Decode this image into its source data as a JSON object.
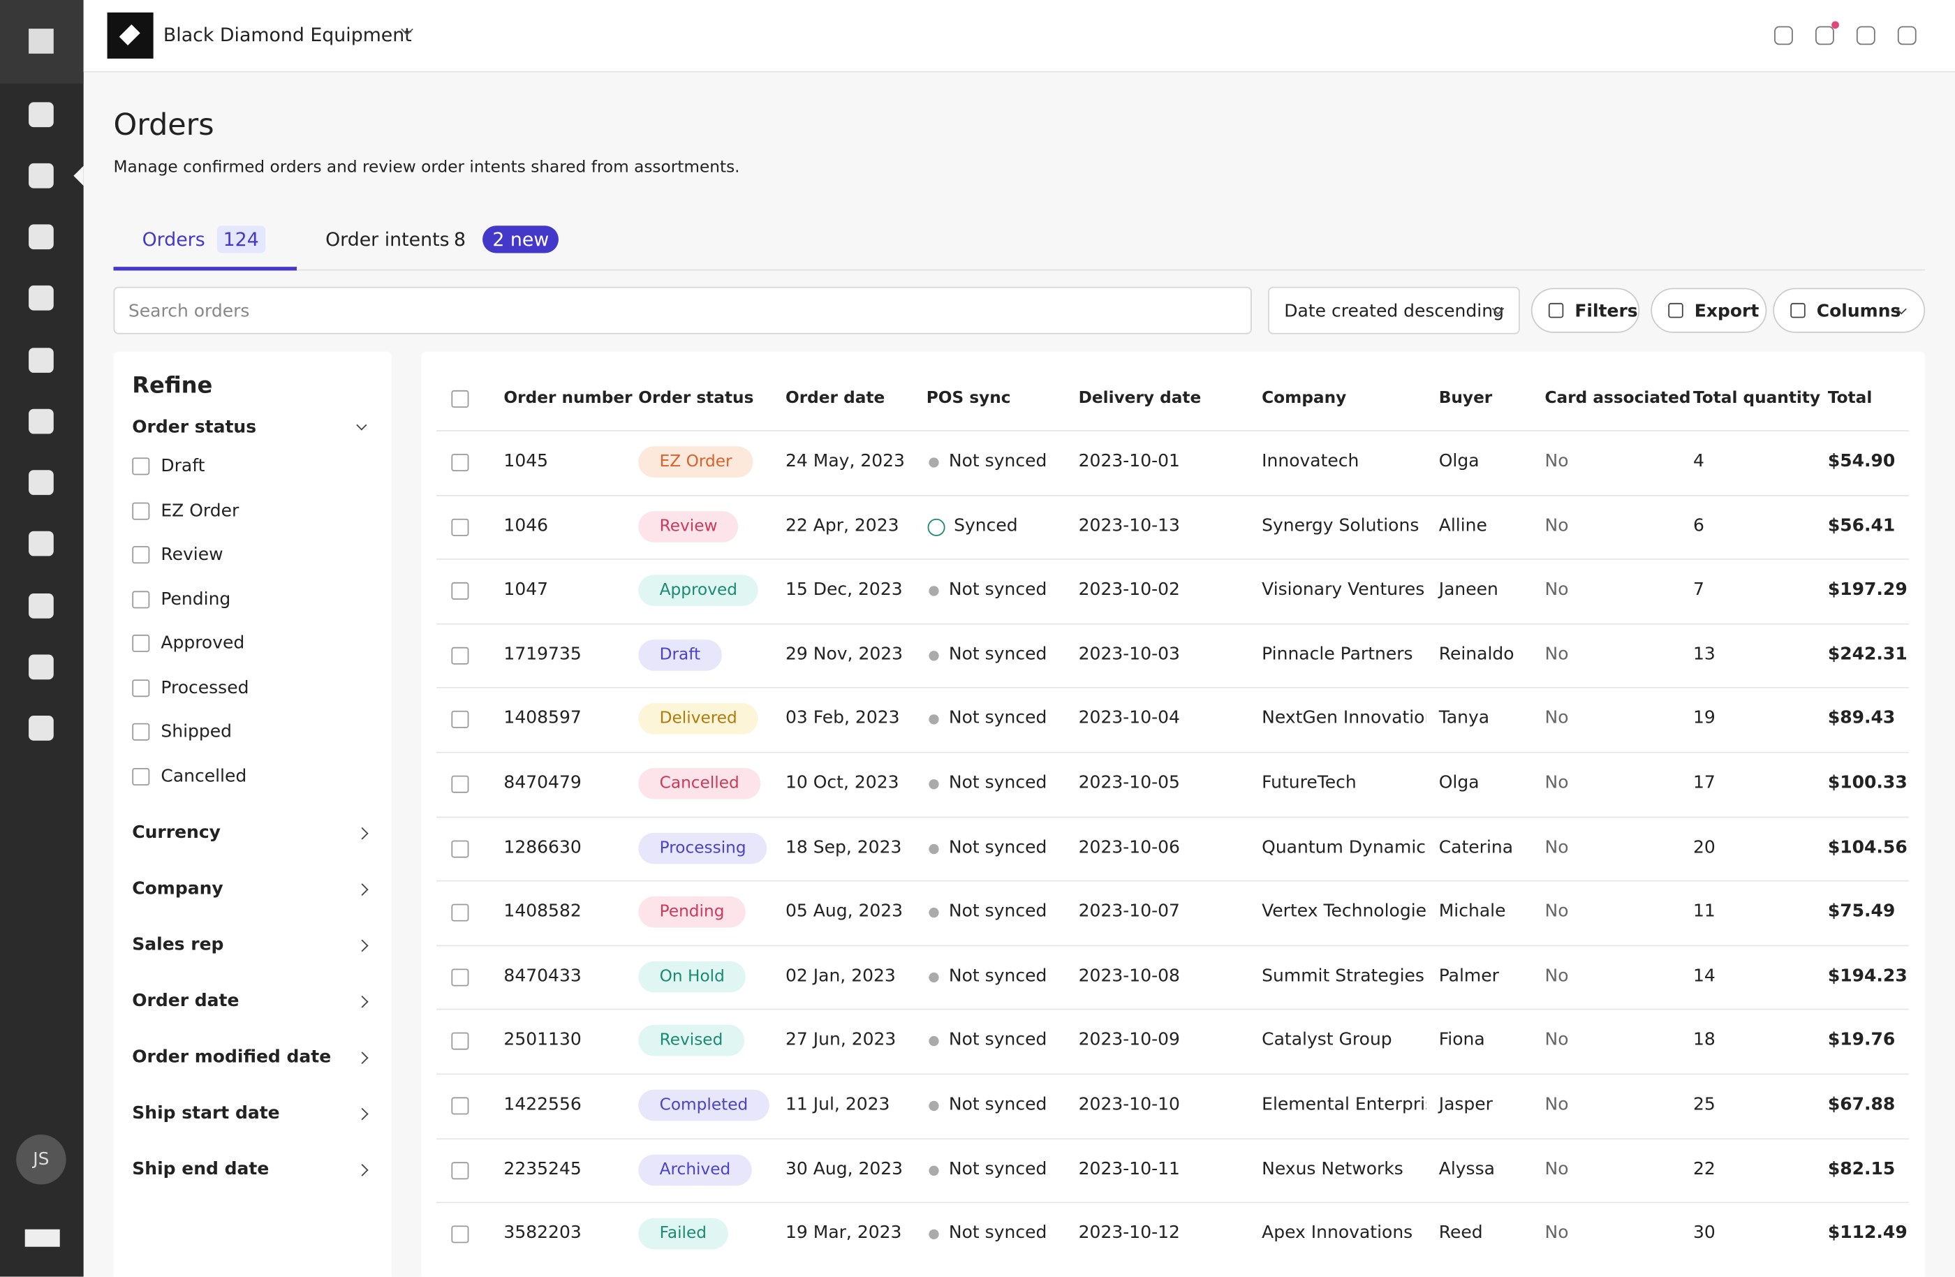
{
  "header": {
    "brand": "Black Diamond Equipment"
  },
  "sidebar": {
    "avatar": "JS"
  },
  "page": {
    "title": "Orders",
    "subtitle": "Manage confirmed orders and review order intents shared from assortments."
  },
  "tabs": [
    {
      "label": "Orders",
      "count": 124
    },
    {
      "label": "Order intents",
      "count": 8,
      "badge": "2 new"
    }
  ],
  "toolbar": {
    "search_placeholder": "Search orders",
    "sort": "Date created descending",
    "buttons": [
      "Filters",
      "Export",
      "Columns"
    ]
  },
  "refine": {
    "title": "Refine",
    "status_heading": "Order status",
    "statuses": [
      "Draft",
      "EZ Order",
      "Review",
      "Pending",
      "Approved",
      "Processed",
      "Shipped",
      "Cancelled"
    ],
    "sections": [
      "Currency",
      "Company",
      "Sales rep",
      "Order date",
      "Order modified date",
      "Ship start date",
      "Ship end date"
    ]
  },
  "table": {
    "columns": [
      "Order number",
      "Order status",
      "Order date",
      "POS sync",
      "Delivery date",
      "Company",
      "Buyer",
      "Card associated",
      "Total quantity",
      "Total"
    ],
    "rows": [
      [
        "1045",
        "EZ Order",
        "24 May, 2023",
        "Not synced",
        "2023-10-01",
        "Innovatech",
        "Olga",
        "No",
        4,
        "$54.90"
      ],
      [
        "1046",
        "Review",
        "22 Apr, 2023",
        "Synced",
        "2023-10-13",
        "Synergy Solutions",
        "Alline",
        "No",
        6,
        "$56.41"
      ],
      [
        "1047",
        "Approved",
        "15 Dec, 2023",
        "Not synced",
        "2023-10-02",
        "Visionary Ventures",
        "Janeen",
        "No",
        7,
        "$197.29"
      ],
      [
        "1719735",
        "Draft",
        "29 Nov, 2023",
        "Not synced",
        "2023-10-03",
        "Pinnacle Partners",
        "Reinaldo",
        "No",
        13,
        "$242.31"
      ],
      [
        "1408597",
        "Delivered",
        "03 Feb, 2023",
        "Not synced",
        "2023-10-04",
        "NextGen Innovations",
        "Tanya",
        "No",
        19,
        "$89.43"
      ],
      [
        "8470479",
        "Cancelled",
        "10 Oct, 2023",
        "Not synced",
        "2023-10-05",
        "FutureTech",
        "Olga",
        "No",
        17,
        "$100.33"
      ],
      [
        "1286630",
        "Processing",
        "18 Sep, 2023",
        "Not synced",
        "2023-10-06",
        "Quantum Dynamics",
        "Caterina",
        "No",
        20,
        "$104.56"
      ],
      [
        "1408582",
        "Pending",
        "05 Aug, 2023",
        "Not synced",
        "2023-10-07",
        "Vertex Technologies",
        "Michale",
        "No",
        11,
        "$75.49"
      ],
      [
        "8470433",
        "On Hold",
        "02 Jan, 2023",
        "Not synced",
        "2023-10-08",
        "Summit Strategies",
        "Palmer",
        "No",
        14,
        "$194.23"
      ],
      [
        "2501130",
        "Revised",
        "27 Jun, 2023",
        "Not synced",
        "2023-10-09",
        "Catalyst Group",
        "Fiona",
        "No",
        18,
        "$19.76"
      ],
      [
        "1422556",
        "Completed",
        "11 Jul, 2023",
        "Not synced",
        "2023-10-10",
        "Elemental Enterprises",
        "Jasper",
        "No",
        25,
        "$67.88"
      ],
      [
        "2235245",
        "Archived",
        "30 Aug, 2023",
        "Not synced",
        "2023-10-11",
        "Nexus Networks",
        "Alyssa",
        "No",
        22,
        "$82.15"
      ],
      [
        "3582203",
        "Failed",
        "19 Mar, 2023",
        "Not synced",
        "2023-10-12",
        "Apex Innovations",
        "Reed",
        "No",
        30,
        "$112.49"
      ]
    ]
  }
}
